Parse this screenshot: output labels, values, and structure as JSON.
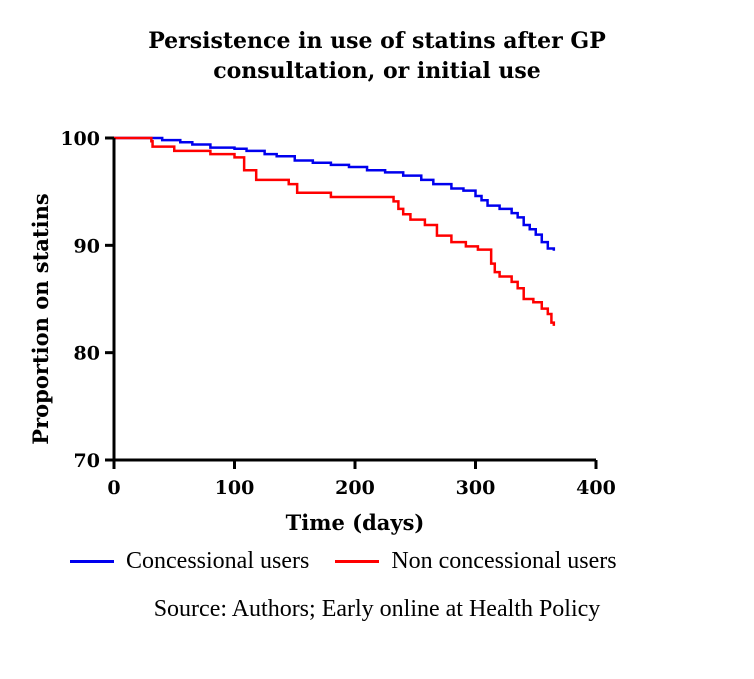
{
  "chart_data": {
    "type": "line",
    "title_line1": "Persistence in use of statins after GP",
    "title_line2": "consultation, or initial use",
    "xlabel": "Time (days)",
    "ylabel": "Proportion on statins",
    "xlim": [
      0,
      400
    ],
    "ylim": [
      70,
      100
    ],
    "x_ticks": [
      "0",
      "100",
      "200",
      "300",
      "400"
    ],
    "y_ticks": [
      "70",
      "80",
      "90",
      "100"
    ],
    "step": true,
    "grid": false,
    "legend_position": "bottom",
    "series": [
      {
        "name": "Concessional users",
        "color": "#0000ee",
        "points": [
          [
            0,
            100
          ],
          [
            30,
            100
          ],
          [
            40,
            99.8
          ],
          [
            55,
            99.6
          ],
          [
            65,
            99.4
          ],
          [
            80,
            99.1
          ],
          [
            100,
            99.0
          ],
          [
            110,
            98.8
          ],
          [
            125,
            98.5
          ],
          [
            135,
            98.3
          ],
          [
            150,
            97.9
          ],
          [
            165,
            97.7
          ],
          [
            180,
            97.5
          ],
          [
            195,
            97.3
          ],
          [
            210,
            97.0
          ],
          [
            225,
            96.8
          ],
          [
            240,
            96.5
          ],
          [
            255,
            96.1
          ],
          [
            265,
            95.7
          ],
          [
            280,
            95.3
          ],
          [
            290,
            95.1
          ],
          [
            300,
            94.6
          ],
          [
            305,
            94.2
          ],
          [
            310,
            93.7
          ],
          [
            320,
            93.4
          ],
          [
            330,
            93.0
          ],
          [
            335,
            92.6
          ],
          [
            340,
            91.9
          ],
          [
            345,
            91.5
          ],
          [
            350,
            91.0
          ],
          [
            355,
            90.3
          ],
          [
            360,
            89.7
          ],
          [
            365,
            89.5
          ]
        ]
      },
      {
        "name": "Non concessional users",
        "color": "#ff0000",
        "points": [
          [
            0,
            100
          ],
          [
            30,
            100
          ],
          [
            31,
            99.7
          ],
          [
            32,
            99.2
          ],
          [
            50,
            98.8
          ],
          [
            80,
            98.5
          ],
          [
            100,
            98.2
          ],
          [
            108,
            97.0
          ],
          [
            118,
            96.1
          ],
          [
            145,
            95.7
          ],
          [
            152,
            94.9
          ],
          [
            180,
            94.5
          ],
          [
            232,
            94.1
          ],
          [
            236,
            93.4
          ],
          [
            240,
            92.9
          ],
          [
            246,
            92.4
          ],
          [
            258,
            91.9
          ],
          [
            268,
            90.9
          ],
          [
            280,
            90.3
          ],
          [
            292,
            89.9
          ],
          [
            302,
            89.6
          ],
          [
            313,
            88.3
          ],
          [
            316,
            87.5
          ],
          [
            320,
            87.1
          ],
          [
            330,
            86.6
          ],
          [
            335,
            86.0
          ],
          [
            340,
            85.0
          ],
          [
            348,
            84.7
          ],
          [
            355,
            84.1
          ],
          [
            360,
            83.6
          ],
          [
            363,
            82.8
          ],
          [
            365,
            82.5
          ]
        ]
      }
    ]
  },
  "source_text": "Source: Authors; Early online at Health Policy"
}
